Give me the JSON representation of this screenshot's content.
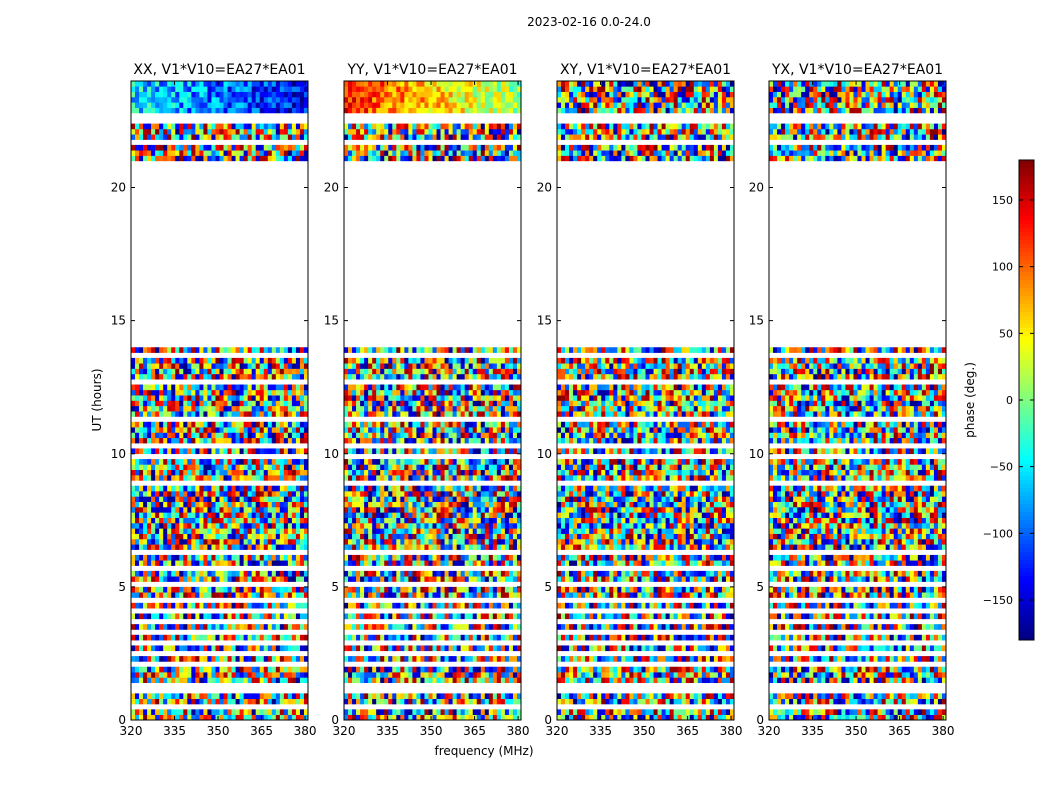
{
  "figure_title": "2023-02-16 0.0-24.0",
  "chart_data": {
    "type": "heatmap",
    "suptitle": "2023-02-16 0.0-24.0",
    "xlabel": "frequency (MHz)",
    "ylabel": "UT (hours)",
    "xlim": [
      320,
      381
    ],
    "ylim": [
      0,
      24
    ],
    "xticks": [
      "320",
      "335",
      "350",
      "365",
      "380"
    ],
    "yticks": [
      "0",
      "5",
      "10",
      "15",
      "20"
    ],
    "xtick_values": [
      320,
      335,
      350,
      365,
      380
    ],
    "ytick_values": [
      0,
      5,
      10,
      15,
      20
    ],
    "panels": [
      {
        "title": "XX, V1*V10=EA27*EA01",
        "pol": "XX"
      },
      {
        "title": "YY, V1*V10=EA27*EA01",
        "pol": "YY"
      },
      {
        "title": "XY, V1*V10=EA27*EA01",
        "pol": "XY"
      },
      {
        "title": "YX, V1*V10=EA27*EA01",
        "pol": "YX"
      }
    ],
    "data_gaps_ut": [
      [
        14.0,
        21.0
      ]
    ],
    "colorbar": {
      "label": "phase (deg.)",
      "range": [
        -180,
        180
      ],
      "ticks": [
        "150",
        "100",
        "50",
        "0",
        "−50",
        "−100",
        "−150"
      ],
      "tick_values": [
        150,
        100,
        50,
        0,
        -50,
        -100,
        -150
      ],
      "colormap": "jet"
    }
  }
}
